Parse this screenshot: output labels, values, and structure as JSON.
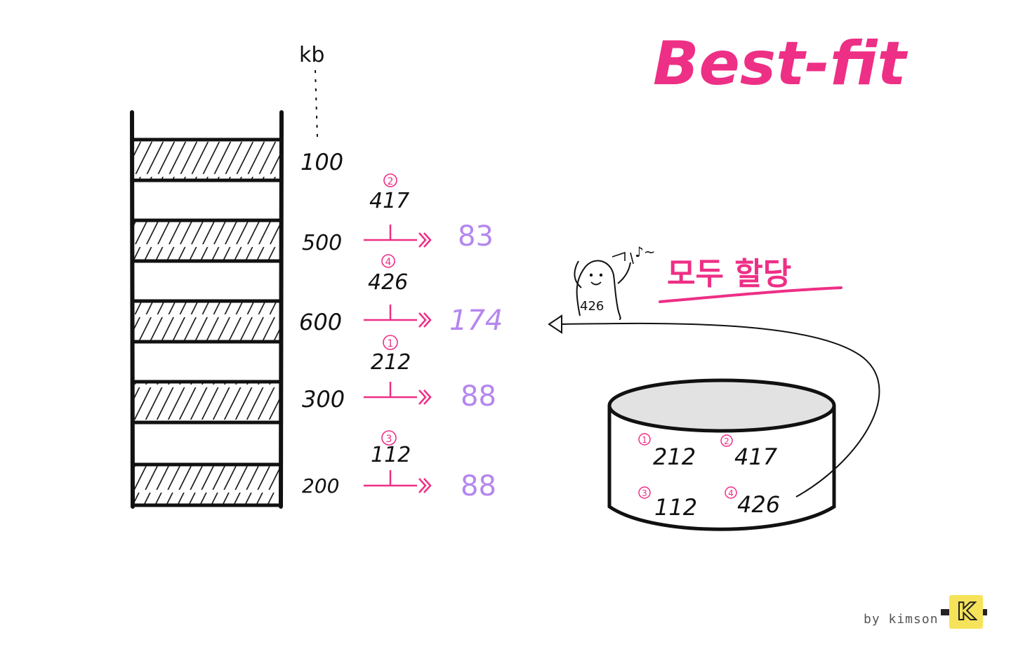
{
  "title": "Best-fit",
  "unit_label": "kb",
  "memory_blocks": [
    {
      "size": "100",
      "process": "",
      "order": "",
      "remaining": ""
    },
    {
      "size": "500",
      "process": "417",
      "order": "2",
      "remaining": "83"
    },
    {
      "size": "600",
      "process": "426",
      "order": "4",
      "remaining": "174"
    },
    {
      "size": "300",
      "process": "212",
      "order": "1",
      "remaining": "88"
    },
    {
      "size": "200",
      "process": "112",
      "order": "3",
      "remaining": "88"
    }
  ],
  "queue": [
    {
      "order": "1",
      "value": "212"
    },
    {
      "order": "2",
      "value": "417"
    },
    {
      "order": "3",
      "value": "112"
    },
    {
      "order": "4",
      "value": "426"
    }
  ],
  "ghost_label": "426",
  "ghost_tune": "♪~",
  "result_label": "모두 할당",
  "credit": "by kimson",
  "logo_letter": "K",
  "colors": {
    "ink": "#111111",
    "pink": "#ee2f86",
    "violet": "#b487ee",
    "logo": "#f6e35a"
  }
}
